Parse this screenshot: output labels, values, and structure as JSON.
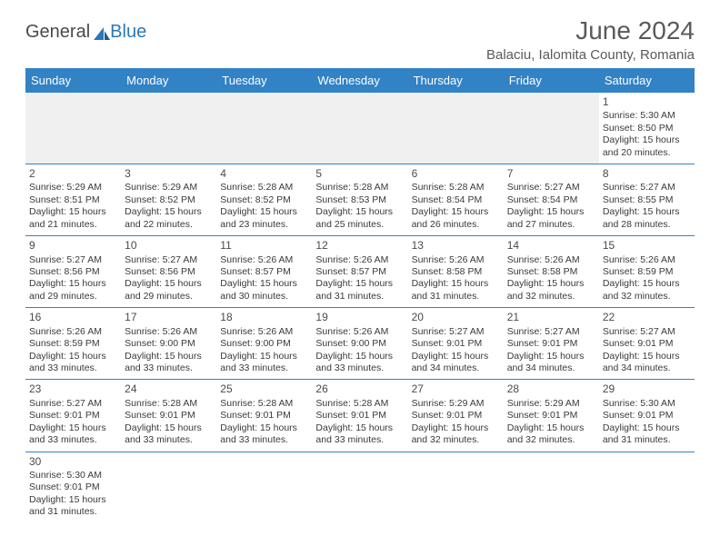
{
  "logo": {
    "general": "General",
    "blue": "Blue"
  },
  "title": "June 2024",
  "location": "Balaciu, Ialomita County, Romania",
  "colors": {
    "header_bg": "#3282c6",
    "header_text": "#ffffff",
    "logo_gray": "#4a4a4a",
    "logo_blue": "#2a78bb",
    "text": "#3a3a3a",
    "border": "#3282c6",
    "empty_bg": "#f0f0f0"
  },
  "day_headers": [
    "Sunday",
    "Monday",
    "Tuesday",
    "Wednesday",
    "Thursday",
    "Friday",
    "Saturday"
  ],
  "weeks": [
    [
      null,
      null,
      null,
      null,
      null,
      null,
      {
        "d": "1",
        "sr": "5:30 AM",
        "ss": "8:50 PM",
        "dl": "15 hours and 20 minutes."
      }
    ],
    [
      {
        "d": "2",
        "sr": "5:29 AM",
        "ss": "8:51 PM",
        "dl": "15 hours and 21 minutes."
      },
      {
        "d": "3",
        "sr": "5:29 AM",
        "ss": "8:52 PM",
        "dl": "15 hours and 22 minutes."
      },
      {
        "d": "4",
        "sr": "5:28 AM",
        "ss": "8:52 PM",
        "dl": "15 hours and 23 minutes."
      },
      {
        "d": "5",
        "sr": "5:28 AM",
        "ss": "8:53 PM",
        "dl": "15 hours and 25 minutes."
      },
      {
        "d": "6",
        "sr": "5:28 AM",
        "ss": "8:54 PM",
        "dl": "15 hours and 26 minutes."
      },
      {
        "d": "7",
        "sr": "5:27 AM",
        "ss": "8:54 PM",
        "dl": "15 hours and 27 minutes."
      },
      {
        "d": "8",
        "sr": "5:27 AM",
        "ss": "8:55 PM",
        "dl": "15 hours and 28 minutes."
      }
    ],
    [
      {
        "d": "9",
        "sr": "5:27 AM",
        "ss": "8:56 PM",
        "dl": "15 hours and 29 minutes."
      },
      {
        "d": "10",
        "sr": "5:27 AM",
        "ss": "8:56 PM",
        "dl": "15 hours and 29 minutes."
      },
      {
        "d": "11",
        "sr": "5:26 AM",
        "ss": "8:57 PM",
        "dl": "15 hours and 30 minutes."
      },
      {
        "d": "12",
        "sr": "5:26 AM",
        "ss": "8:57 PM",
        "dl": "15 hours and 31 minutes."
      },
      {
        "d": "13",
        "sr": "5:26 AM",
        "ss": "8:58 PM",
        "dl": "15 hours and 31 minutes."
      },
      {
        "d": "14",
        "sr": "5:26 AM",
        "ss": "8:58 PM",
        "dl": "15 hours and 32 minutes."
      },
      {
        "d": "15",
        "sr": "5:26 AM",
        "ss": "8:59 PM",
        "dl": "15 hours and 32 minutes."
      }
    ],
    [
      {
        "d": "16",
        "sr": "5:26 AM",
        "ss": "8:59 PM",
        "dl": "15 hours and 33 minutes."
      },
      {
        "d": "17",
        "sr": "5:26 AM",
        "ss": "9:00 PM",
        "dl": "15 hours and 33 minutes."
      },
      {
        "d": "18",
        "sr": "5:26 AM",
        "ss": "9:00 PM",
        "dl": "15 hours and 33 minutes."
      },
      {
        "d": "19",
        "sr": "5:26 AM",
        "ss": "9:00 PM",
        "dl": "15 hours and 33 minutes."
      },
      {
        "d": "20",
        "sr": "5:27 AM",
        "ss": "9:01 PM",
        "dl": "15 hours and 34 minutes."
      },
      {
        "d": "21",
        "sr": "5:27 AM",
        "ss": "9:01 PM",
        "dl": "15 hours and 34 minutes."
      },
      {
        "d": "22",
        "sr": "5:27 AM",
        "ss": "9:01 PM",
        "dl": "15 hours and 34 minutes."
      }
    ],
    [
      {
        "d": "23",
        "sr": "5:27 AM",
        "ss": "9:01 PM",
        "dl": "15 hours and 33 minutes."
      },
      {
        "d": "24",
        "sr": "5:28 AM",
        "ss": "9:01 PM",
        "dl": "15 hours and 33 minutes."
      },
      {
        "d": "25",
        "sr": "5:28 AM",
        "ss": "9:01 PM",
        "dl": "15 hours and 33 minutes."
      },
      {
        "d": "26",
        "sr": "5:28 AM",
        "ss": "9:01 PM",
        "dl": "15 hours and 33 minutes."
      },
      {
        "d": "27",
        "sr": "5:29 AM",
        "ss": "9:01 PM",
        "dl": "15 hours and 32 minutes."
      },
      {
        "d": "28",
        "sr": "5:29 AM",
        "ss": "9:01 PM",
        "dl": "15 hours and 32 minutes."
      },
      {
        "d": "29",
        "sr": "5:30 AM",
        "ss": "9:01 PM",
        "dl": "15 hours and 31 minutes."
      }
    ],
    [
      {
        "d": "30",
        "sr": "5:30 AM",
        "ss": "9:01 PM",
        "dl": "15 hours and 31 minutes."
      },
      null,
      null,
      null,
      null,
      null,
      null
    ]
  ],
  "labels": {
    "sunrise_prefix": "Sunrise: ",
    "sunset_prefix": "Sunset: ",
    "daylight_prefix": "Daylight: "
  }
}
